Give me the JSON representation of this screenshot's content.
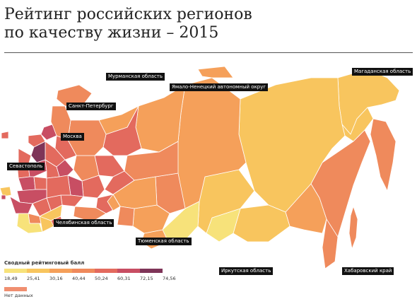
{
  "title": {
    "line1": "Рейтинг российских регионов",
    "line2": "по качеству жизни – 2015"
  },
  "labels": {
    "murmansk": "Мурманская область",
    "spb": "Санкт-Петербург",
    "yamal": "Ямало-Ненецкий автономный округ",
    "magadan": "Магаданская область",
    "moscow": "Москва",
    "sevastopol": "Севастополь",
    "chelyabinsk": "Челябинская область",
    "tyumen": "Тюменская область",
    "irkutsk": "Иркутская область",
    "khabarovsk": "Хабаровский край"
  },
  "legend": {
    "title": "Сводный рейтинговый балл",
    "ticks": [
      "18,49",
      "25,41",
      "30,16",
      "40,44",
      "50,24",
      "60,31",
      "72,15",
      "74,56"
    ],
    "colors": [
      "#f7e27a",
      "#f8c55e",
      "#f5a05a",
      "#ef8a5c",
      "#e36a5e",
      "#c84e63",
      "#7e3458"
    ],
    "nodata_label": "Нет данных",
    "nodata_color": "#f08f70"
  },
  "colors": {
    "yellow": "#f7e27a",
    "light_orange": "#f8c55e",
    "orange": "#f5a05a",
    "salmon": "#ef8a5c",
    "red": "#e36a5e",
    "dark_red": "#c84e63",
    "purple": "#7e3458"
  }
}
